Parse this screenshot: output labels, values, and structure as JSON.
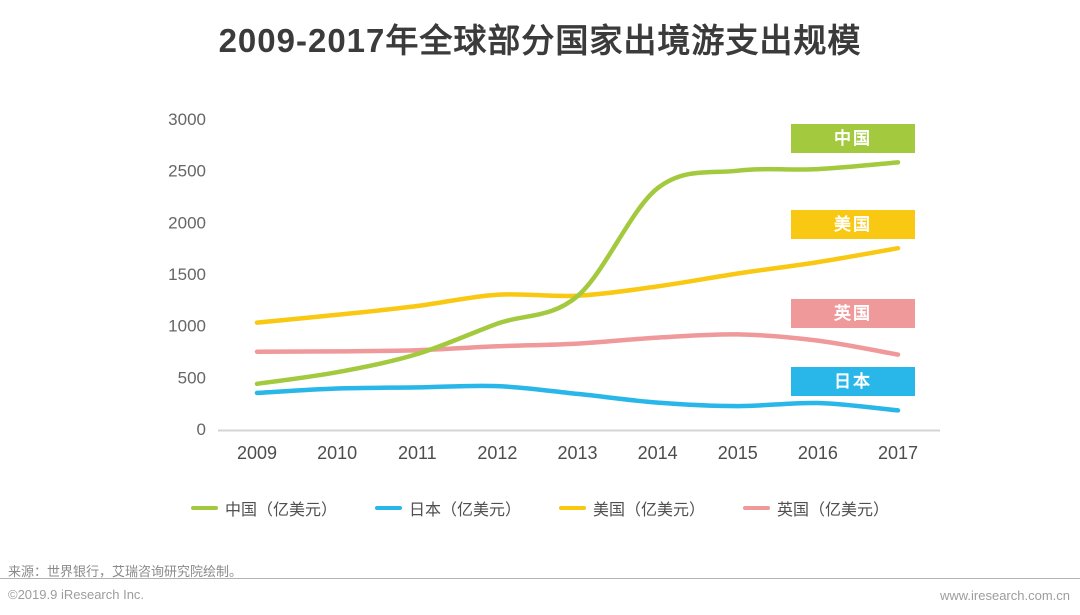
{
  "title": "2009-2017年全球部分国家出境游支出规模",
  "footer": {
    "source": "来源：世界银行，艾瑞咨询研究院绘制。",
    "copyright": "©2019.9 iResearch Inc.",
    "website": "www.iresearch.com.cn"
  },
  "colors": {
    "china": "#a3c93e",
    "japan": "#29b6e9",
    "usa": "#f9c812",
    "uk": "#ef999a",
    "axis": "#d4d4d4",
    "y_tick_text": "#666666",
    "x_tick_text": "#4d4d4d",
    "title_text": "#3b3b3b"
  },
  "chart_data": {
    "type": "line",
    "title": "2009-2017年全球部分国家出境游支出规模",
    "unit": "亿美元",
    "x_labels": [
      "2009",
      "2010",
      "2011",
      "2012",
      "2013",
      "2014",
      "2015",
      "2016",
      "2017"
    ],
    "yticks": [
      0,
      500,
      1000,
      1500,
      2000,
      2500,
      3000
    ],
    "ylim": [
      0,
      3000
    ],
    "grid": false,
    "legend_position": "bottom",
    "series": [
      {
        "key": "china",
        "name": "中国",
        "legend_label": "中国（亿美元）",
        "color": "#a3c93e",
        "values": [
          437,
          550,
          726,
          1020,
          1286,
          2330,
          2500,
          2515,
          2580
        ]
      },
      {
        "key": "japan",
        "name": "日本",
        "legend_label": "日本（亿美元）",
        "color": "#29b6e9",
        "values": [
          349,
          392,
          403,
          415,
          340,
          255,
          222,
          252,
          180
        ]
      },
      {
        "key": "usa",
        "name": "美国",
        "legend_label": "美国（亿美元）",
        "color": "#f9c812",
        "values": [
          1030,
          1105,
          1190,
          1300,
          1290,
          1380,
          1505,
          1615,
          1750
        ]
      },
      {
        "key": "uk",
        "name": "英国",
        "legend_label": "英国（亿美元）",
        "color": "#ef999a",
        "values": [
          748,
          751,
          763,
          800,
          826,
          885,
          915,
          855,
          720
        ]
      }
    ]
  }
}
